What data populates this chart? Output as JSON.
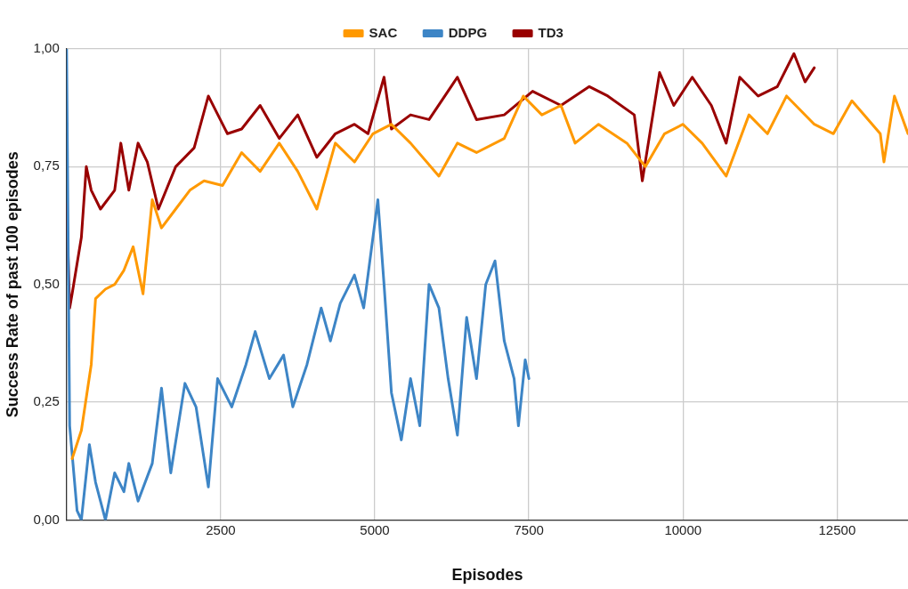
{
  "chart_data": {
    "type": "line",
    "xlabel": "Episodes",
    "ylabel": "Success Rate of past 100 episodes",
    "xlim": [
      0,
      13650
    ],
    "xticks": [
      2500,
      5000,
      7500,
      10000,
      12500
    ],
    "ylim": [
      0,
      1
    ],
    "yticks": [
      {
        "value": 0,
        "label": "0,00"
      },
      {
        "value": 0.25,
        "label": "0,25"
      },
      {
        "value": 0.5,
        "label": "0,50"
      },
      {
        "value": 0.75,
        "label": "0,75"
      },
      {
        "value": 1,
        "label": "1,00"
      }
    ],
    "grid": true,
    "legend": "top",
    "marker": "none",
    "line_style": "solid",
    "series": [
      {
        "name": "SAC",
        "color": "#ff9900",
        "x": [
          90,
          240,
          400,
          470,
          630,
          780,
          930,
          1080,
          1240,
          1390,
          1540,
          1770,
          2000,
          2230,
          2530,
          2840,
          3140,
          3450,
          3750,
          4060,
          4360,
          4670,
          4970,
          5270,
          5580,
          6040,
          6340,
          6650,
          7100,
          7410,
          7710,
          8020,
          8250,
          8630,
          9090,
          9390,
          9700,
          10000,
          10310,
          10700,
          11070,
          11370,
          11680,
          12130,
          12440,
          12740,
          13200,
          13260,
          13430,
          13650
        ],
        "values": [
          0.13,
          0.19,
          0.33,
          0.47,
          0.49,
          0.5,
          0.53,
          0.58,
          0.48,
          0.68,
          0.62,
          0.66,
          0.7,
          0.72,
          0.71,
          0.78,
          0.74,
          0.8,
          0.74,
          0.66,
          0.8,
          0.76,
          0.82,
          0.84,
          0.8,
          0.73,
          0.8,
          0.78,
          0.81,
          0.9,
          0.86,
          0.88,
          0.8,
          0.84,
          0.8,
          0.75,
          0.82,
          0.84,
          0.8,
          0.73,
          0.86,
          0.82,
          0.9,
          0.84,
          0.82,
          0.89,
          0.82,
          0.76,
          0.9,
          0.82
        ]
      },
      {
        "name": "DDPG",
        "color": "#3d85c6",
        "x": [
          0,
          50,
          170,
          240,
          370,
          470,
          630,
          780,
          930,
          1010,
          1160,
          1390,
          1540,
          1690,
          1920,
          2100,
          2300,
          2450,
          2680,
          2910,
          3060,
          3290,
          3520,
          3670,
          3900,
          4130,
          4280,
          4440,
          4670,
          4820,
          5050,
          5150,
          5270,
          5430,
          5580,
          5730,
          5880,
          6040,
          6190,
          6340,
          6490,
          6650,
          6800,
          6950,
          7100,
          7260,
          7330,
          7440,
          7500
        ],
        "values": [
          1,
          0.2,
          0.02,
          0,
          0.16,
          0.08,
          0,
          0.1,
          0.06,
          0.12,
          0.04,
          0.12,
          0.28,
          0.1,
          0.29,
          0.24,
          0.07,
          0.3,
          0.24,
          0.33,
          0.4,
          0.3,
          0.35,
          0.24,
          0.33,
          0.45,
          0.38,
          0.46,
          0.52,
          0.45,
          0.68,
          0.5,
          0.27,
          0.17,
          0.3,
          0.2,
          0.5,
          0.45,
          0.3,
          0.18,
          0.43,
          0.3,
          0.5,
          0.55,
          0.38,
          0.3,
          0.2,
          0.34,
          0.3
        ]
      },
      {
        "name": "TD3",
        "color": "#990000",
        "x": [
          0,
          50,
          90,
          240,
          320,
          400,
          550,
          780,
          880,
          1010,
          1160,
          1310,
          1490,
          1770,
          2070,
          2300,
          2610,
          2840,
          3140,
          3450,
          3750,
          4060,
          4360,
          4670,
          4890,
          5150,
          5270,
          5580,
          5880,
          6340,
          6650,
          7100,
          7560,
          8020,
          8480,
          8780,
          9210,
          9340,
          9620,
          9850,
          10150,
          10460,
          10700,
          10920,
          11220,
          11530,
          11800,
          11980,
          12130
        ],
        "values": [
          0.67,
          0.45,
          0.48,
          0.6,
          0.75,
          0.7,
          0.66,
          0.7,
          0.8,
          0.7,
          0.8,
          0.76,
          0.66,
          0.75,
          0.79,
          0.9,
          0.82,
          0.83,
          0.88,
          0.81,
          0.86,
          0.77,
          0.82,
          0.84,
          0.82,
          0.94,
          0.83,
          0.86,
          0.85,
          0.94,
          0.85,
          0.86,
          0.91,
          0.88,
          0.92,
          0.9,
          0.86,
          0.72,
          0.95,
          0.88,
          0.94,
          0.88,
          0.8,
          0.94,
          0.9,
          0.92,
          0.99,
          0.93,
          0.96
        ]
      }
    ]
  }
}
